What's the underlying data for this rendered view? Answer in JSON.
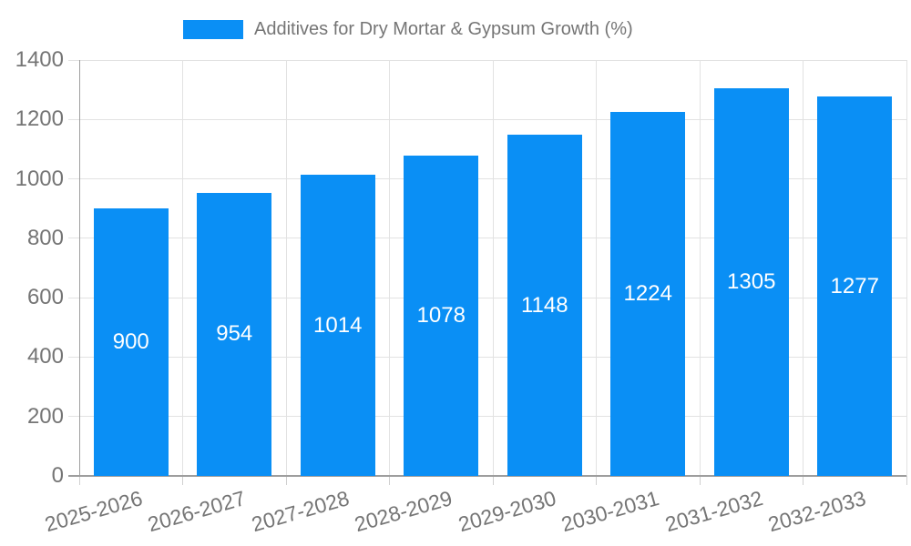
{
  "chart_data": {
    "type": "bar",
    "title": "Additives for Dry Mortar & Gypsum Growth (%)",
    "legend_position": "top",
    "categories": [
      "2025-2026",
      "2026-2027",
      "2027-2028",
      "2028-2029",
      "2029-2030",
      "2030-2031",
      "2031-2032",
      "2032-2033"
    ],
    "series": [
      {
        "name": "Additives for Dry Mortar & Gypsum Growth (%)",
        "values": [
          900,
          954,
          1014,
          1078,
          1148,
          1224,
          1305,
          1277
        ]
      }
    ],
    "yticks": [
      0,
      200,
      400,
      600,
      800,
      1000,
      1200,
      1400
    ],
    "ylim": [
      0,
      1400
    ],
    "grid": "on",
    "xlabel": "",
    "ylabel": "",
    "colors": {
      "bar": "#0a8ff5",
      "bar_label": "#ffffff",
      "grid": "#e2e2e2",
      "axis": "#9e9e9e",
      "tick": "#d0d0d0",
      "text": "#757575"
    }
  }
}
